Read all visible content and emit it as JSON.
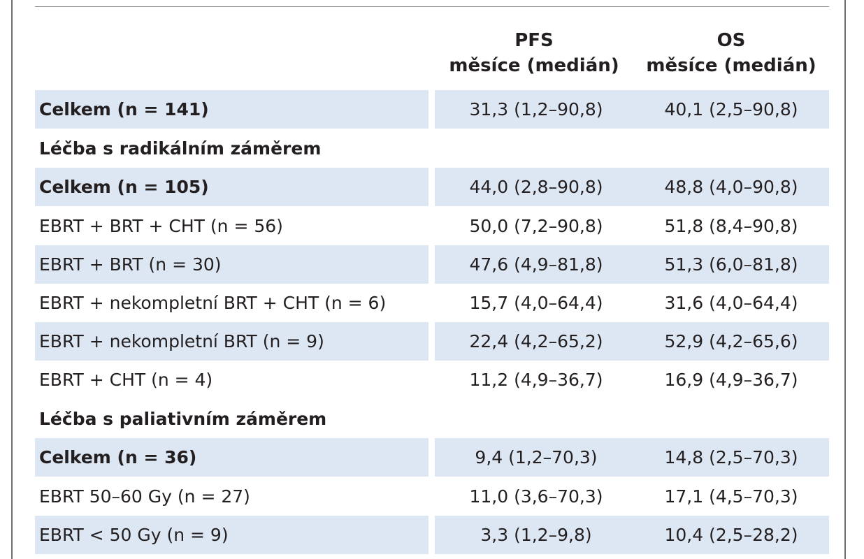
{
  "header": {
    "pfs": {
      "line1": "PFS",
      "line2": "měsíce (medián)"
    },
    "os": {
      "line1": "OS",
      "line2": "měsíce (medián)"
    }
  },
  "rows": [
    {
      "label": "Celkem (n = 141)",
      "pfs": "31,3 (1,2–90,8)",
      "os": "40,1 (2,5–90,8)"
    },
    {
      "label": "Léčba s radikálním záměrem",
      "pfs": "",
      "os": ""
    },
    {
      "label": "Celkem (n = 105)",
      "pfs": "44,0 (2,8–90,8)",
      "os": "48,8 (4,0–90,8)"
    },
    {
      "label": "EBRT + BRT + CHT (n = 56)",
      "pfs": "50,0 (7,2–90,8)",
      "os": "51,8 (8,4–90,8)"
    },
    {
      "label": "EBRT + BRT (n = 30)",
      "pfs": "47,6 (4,9–81,8)",
      "os": "51,3 (6,0–81,8)"
    },
    {
      "label": "EBRT + nekompletní BRT + CHT (n = 6)",
      "pfs": "15,7 (4,0–64,4)",
      "os": "31,6 (4,0–64,4)"
    },
    {
      "label": "EBRT + nekompletní BRT (n = 9)",
      "pfs": "22,4 (4,2–65,2)",
      "os": "52,9 (4,2–65,6)"
    },
    {
      "label": "EBRT + CHT (n = 4)",
      "pfs": "11,2 (4,9–36,7)",
      "os": "16,9 (4,9–36,7)"
    },
    {
      "label": "Léčba s paliativním záměrem",
      "pfs": "",
      "os": ""
    },
    {
      "label": "Celkem (n = 36)",
      "pfs": "9,4 (1,2–70,3)",
      "os": "14,8 (2,5–70,3)"
    },
    {
      "label": "EBRT 50–60 Gy (n = 27)",
      "pfs": "11,0 (3,6–70,3)",
      "os": "17,1 (4,5–70,3)"
    },
    {
      "label": "EBRT < 50 Gy (n = 9)",
      "pfs": "3,3 (1,2–9,8)",
      "os": "10,4 (2,5–28,2)"
    }
  ]
}
